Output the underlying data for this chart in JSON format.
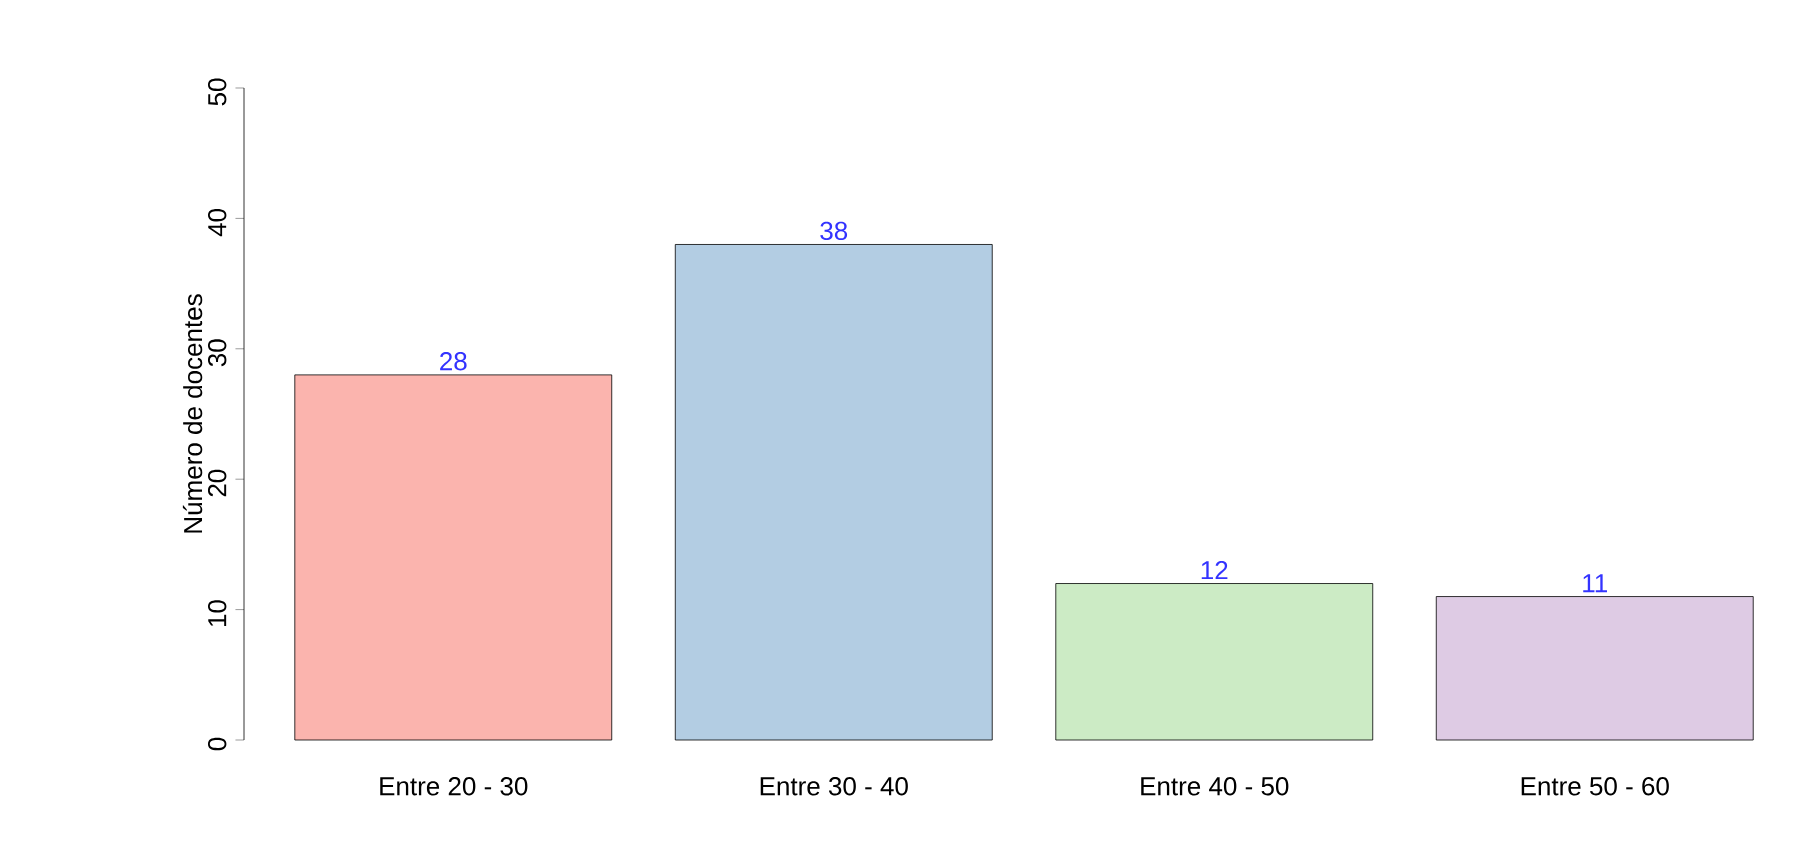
{
  "chart_data": {
    "type": "bar",
    "ylabel": "Número de docentes",
    "categories": [
      "Entre 20 - 30",
      "Entre 30 - 40",
      "Entre 40 - 50",
      "Entre 50 - 60"
    ],
    "values": [
      28,
      38,
      12,
      11
    ],
    "colors": [
      "#fbb4ae",
      "#b3cde3",
      "#ccebc5",
      "#decbe4"
    ],
    "ylim": [
      0,
      50
    ],
    "yticks": [
      0,
      10,
      20,
      30,
      40,
      50
    ],
    "data_labels": true
  }
}
